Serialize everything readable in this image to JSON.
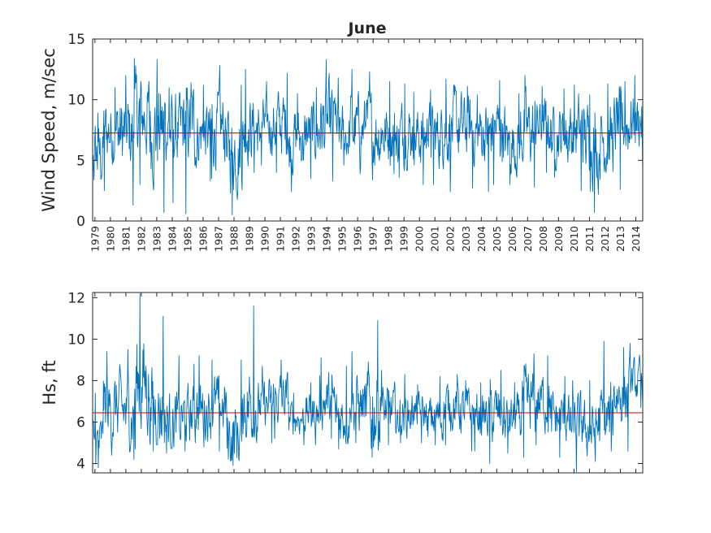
{
  "chart_data": [
    {
      "type": "line",
      "title": "June",
      "xlabel": "",
      "ylabel": "Wind Speed, m/sec",
      "xlim": [
        1978.85,
        2014.45
      ],
      "ylim": [
        0,
        15
      ],
      "yticks": [
        0,
        5,
        10,
        15
      ],
      "xticklabels": [
        "1979",
        "1980",
        "1981",
        "1982",
        "1983",
        "1984",
        "1985",
        "1986",
        "1987",
        "1988",
        "1989",
        "1990",
        "1991",
        "1992",
        "1993",
        "1994",
        "1995",
        "1996",
        "1997",
        "1998",
        "1999",
        "2000",
        "2001",
        "2002",
        "2003",
        "2004",
        "2005",
        "2006",
        "2007",
        "2008",
        "2009",
        "2010",
        "2011",
        "2012",
        "2013",
        "2014"
      ],
      "mean_line": 7.25,
      "series_color": "#0072BD",
      "mean_color": "#D40000",
      "series": [
        {
          "x": [
            1979,
            1980,
            1981,
            1982,
            1983,
            1984,
            1985,
            1986,
            1987,
            1988,
            1989,
            1990,
            1991,
            1992,
            1993,
            1994,
            1995,
            1996,
            1997,
            1998,
            1999,
            2000,
            2001,
            2002,
            2003,
            2004,
            2005,
            2006,
            2007,
            2008,
            2009,
            2010,
            2011,
            2012,
            2013,
            2014
          ],
          "y_mean": [
            5.3,
            7.4,
            7.1,
            8.6,
            7.6,
            7.4,
            7.9,
            7.2,
            7.6,
            6.0,
            7.6,
            7.8,
            8.0,
            6.8,
            7.3,
            7.9,
            7.1,
            7.5,
            7.4,
            7.2,
            7.3,
            7.0,
            7.1,
            7.7,
            7.6,
            7.3,
            7.6,
            6.4,
            7.4,
            7.8,
            7.2,
            7.4,
            6.7,
            6.8,
            8.0,
            8.3
          ],
          "y_max": [
            8.9,
            11.0,
            12.0,
            13.4,
            13.3,
            11.0,
            11.4,
            11.2,
            12.8,
            11.2,
            12.5,
            11.5,
            12.2,
            10.5,
            11.0,
            13.3,
            11.8,
            12.5,
            12.3,
            11.5,
            11.3,
            10.6,
            10.8,
            11.7,
            11.1,
            10.4,
            11.6,
            10.5,
            12.0,
            11.1,
            10.9,
            11.2,
            10.4,
            11.3,
            11.5,
            12.0
          ],
          "y_min": [
            0.2,
            2.5,
            1.3,
            3.0,
            0.7,
            1.5,
            0.6,
            3.3,
            3.5,
            0.5,
            4.0,
            4.6,
            4.0,
            2.4,
            3.5,
            3.3,
            4.6,
            3.9,
            3.4,
            3.9,
            3.6,
            3.0,
            3.0,
            2.4,
            2.7,
            2.4,
            3.0,
            3.0,
            2.8,
            4.0,
            3.6,
            2.5,
            0.7,
            2.2,
            2.6,
            4.6
          ]
        }
      ]
    },
    {
      "type": "line",
      "title": "",
      "xlabel": "",
      "ylabel": "Hs, ft",
      "xlim": [
        1978.85,
        2014.45
      ],
      "ylim": [
        3.55,
        12.25
      ],
      "yticks": [
        4,
        6,
        8,
        10,
        12
      ],
      "mean_line": 6.45,
      "series_color": "#0072BD",
      "mean_color": "#D40000",
      "series": [
        {
          "x": [
            1979,
            1980,
            1981,
            1982,
            1983,
            1984,
            1985,
            1986,
            1987,
            1988,
            1989,
            1990,
            1991,
            1992,
            1993,
            1994,
            1995,
            1996,
            1997,
            1998,
            1999,
            2000,
            2001,
            2002,
            2003,
            2004,
            2005,
            2006,
            2007,
            2008,
            2009,
            2010,
            2011,
            2012,
            2013,
            2014
          ],
          "y_mean": [
            5.0,
            6.6,
            6.5,
            7.9,
            6.7,
            6.0,
            6.3,
            6.6,
            6.8,
            5.4,
            6.8,
            6.8,
            7.1,
            6.2,
            6.4,
            7.0,
            6.3,
            6.8,
            6.6,
            6.5,
            6.4,
            6.4,
            6.2,
            6.8,
            6.5,
            6.3,
            6.3,
            6.1,
            6.8,
            7.0,
            6.2,
            5.8,
            5.6,
            6.0,
            7.4,
            7.9
          ],
          "y_max": [
            7.4,
            9.4,
            9.5,
            12.2,
            11.1,
            9.2,
            8.8,
            9.2,
            9.0,
            9.0,
            11.6,
            8.7,
            9.0,
            7.4,
            7.9,
            9.1,
            8.7,
            9.4,
            10.9,
            8.5,
            8.3,
            7.8,
            8.2,
            8.3,
            8.0,
            7.9,
            8.5,
            7.9,
            9.3,
            9.2,
            8.2,
            8.0,
            8.0,
            9.9,
            9.6,
            9.8
          ],
          "y_min": [
            3.8,
            4.4,
            4.2,
            4.7,
            4.6,
            4.5,
            4.6,
            4.8,
            4.6,
            3.9,
            5.0,
            5.0,
            5.2,
            4.9,
            4.9,
            5.2,
            4.7,
            5.0,
            4.3,
            4.9,
            5.0,
            5.0,
            4.9,
            4.9,
            4.6,
            4.6,
            4.0,
            4.5,
            4.3,
            4.9,
            4.3,
            3.6,
            4.1,
            4.6,
            4.6,
            6.7
          ]
        }
      ]
    }
  ]
}
